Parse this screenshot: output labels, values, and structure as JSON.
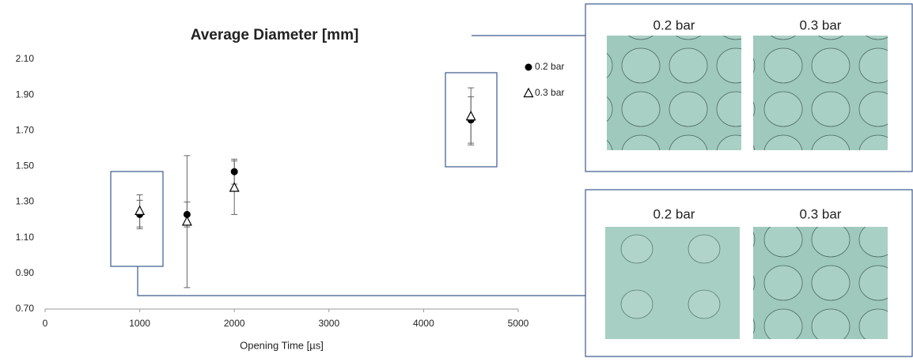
{
  "chart_data": {
    "type": "scatter",
    "title": "Average Diameter [mm]",
    "x_label": "Opening Time [µs]",
    "x": [
      1000,
      1500,
      2000,
      4500
    ],
    "series": [
      {
        "name": "0.2 bar",
        "color": "#000000",
        "marker": "circle",
        "values": [
          1.23,
          1.23,
          1.47,
          1.76
        ],
        "errors": [
          0.08,
          0.07,
          0.07,
          0.13
        ]
      },
      {
        "name": "0.3 bar",
        "color": "#000000",
        "marker": "triangle",
        "values": [
          1.25,
          1.19,
          1.38,
          1.78
        ],
        "errors": [
          0.09,
          0.37,
          0.15,
          0.16
        ]
      }
    ],
    "xlim": [
      0,
      5000
    ],
    "xticks": [
      0,
      1000,
      2000,
      3000,
      4000,
      5000
    ],
    "ylim": [
      0.7,
      2.1
    ],
    "yticks": [
      {
        "value": 0.7,
        "label": "0.70"
      },
      {
        "value": 0.9,
        "label": "0.90"
      },
      {
        "value": 1.1,
        "label": "1.10"
      },
      {
        "value": 1.3,
        "label": "1.30"
      },
      {
        "value": 1.5,
        "label": "1.50"
      },
      {
        "value": 1.7,
        "label": "1.70"
      },
      {
        "value": 1.9,
        "label": "1.90"
      },
      {
        "value": 2.1,
        "label": "2.10"
      }
    ],
    "grid": false
  },
  "panels": [
    {
      "labels": [
        "0.2 bar",
        "0.3 bar"
      ]
    },
    {
      "labels": [
        "0.2 bar",
        "0.3 bar"
      ]
    }
  ]
}
